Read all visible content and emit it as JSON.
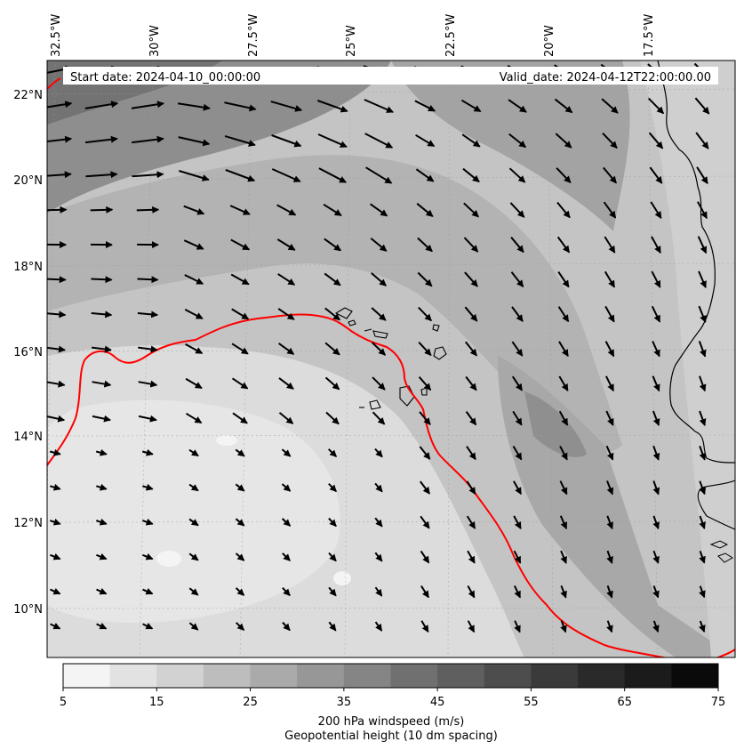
{
  "header": {
    "start_date": "Start date: 2024-04-10_00:00:00",
    "valid_date": "Valid_date: 2024-04-12T22:00:00.00"
  },
  "lon_labels": [
    "32.5°W",
    "30°W",
    "27.5°W",
    "25°W",
    "22.5°W",
    "20°W",
    "17.5°W"
  ],
  "lat_labels": [
    "22°N",
    "20°N",
    "18°N",
    "16°N",
    "14°N",
    "12°N",
    "10°N"
  ],
  "colorbar": {
    "ticks": [
      "5",
      "15",
      "25",
      "35",
      "45",
      "55",
      "65",
      "75"
    ],
    "levels": [
      5,
      10,
      15,
      20,
      25,
      30,
      35,
      40,
      45,
      50,
      55,
      60,
      65,
      70,
      75
    ],
    "colors": [
      "#f4f4f4",
      "#e2e2e2",
      "#d2d2d2",
      "#bdbdbd",
      "#aaaaaa",
      "#979797",
      "#858585",
      "#707070",
      "#5f5f5f",
      "#4d4d4d",
      "#3a3a3a",
      "#2a2a2a",
      "#1b1b1b",
      "#0a0a0a"
    ],
    "title": "200 hPa windspeed (m/s)",
    "subtitle": "Geopotential height (10 dm spacing)",
    "subtitle_color": "#ff0000"
  },
  "contour_color": "#ff0000",
  "coastline_color": "#000000",
  "vector_color": "#000000"
}
